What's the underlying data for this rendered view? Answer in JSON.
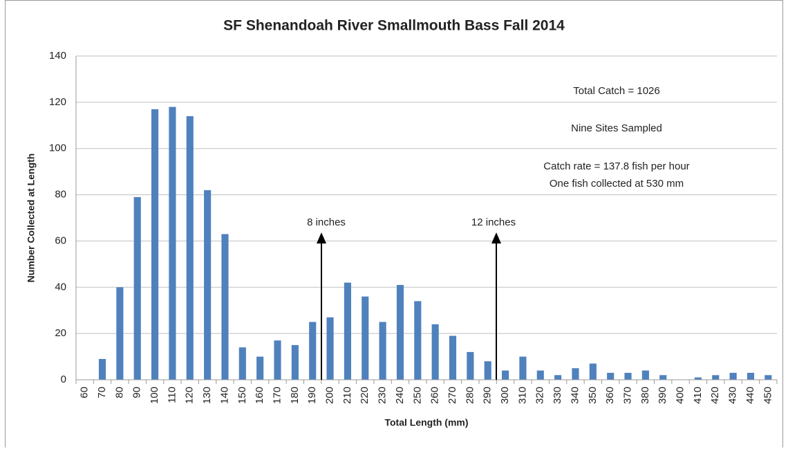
{
  "chart_data": {
    "type": "bar",
    "title": "SF Shenandoah River Smallmouth Bass Fall 2014",
    "x_label": "Total Length (mm)",
    "y_label": "Number Collected at Length",
    "categories": [
      "60",
      "70",
      "80",
      "90",
      "100",
      "110",
      "120",
      "130",
      "140",
      "150",
      "160",
      "170",
      "180",
      "190",
      "200",
      "210",
      "220",
      "230",
      "240",
      "250",
      "260",
      "270",
      "280",
      "290",
      "300",
      "310",
      "320",
      "330",
      "340",
      "350",
      "360",
      "370",
      "380",
      "390",
      "400",
      "410",
      "420",
      "430",
      "440",
      "450"
    ],
    "values": [
      0,
      9,
      40,
      79,
      117,
      118,
      114,
      82,
      63,
      14,
      10,
      17,
      15,
      25,
      27,
      42,
      36,
      25,
      41,
      34,
      24,
      19,
      12,
      8,
      4,
      10,
      4,
      2,
      5,
      7,
      3,
      3,
      4,
      2,
      0,
      1,
      2,
      3,
      3,
      2
    ],
    "color": "#4f81bd",
    "ylim": [
      0,
      140
    ],
    "yticks": [
      0,
      20,
      40,
      60,
      80,
      100,
      120,
      140
    ],
    "grid": true,
    "annotations": [
      "Total Catch = 1026",
      "Nine Sites Sampled",
      "Catch rate =  137.8 fish per hour",
      "One fish collected at 530 mm",
      "8 inches",
      "12 inches"
    ]
  }
}
